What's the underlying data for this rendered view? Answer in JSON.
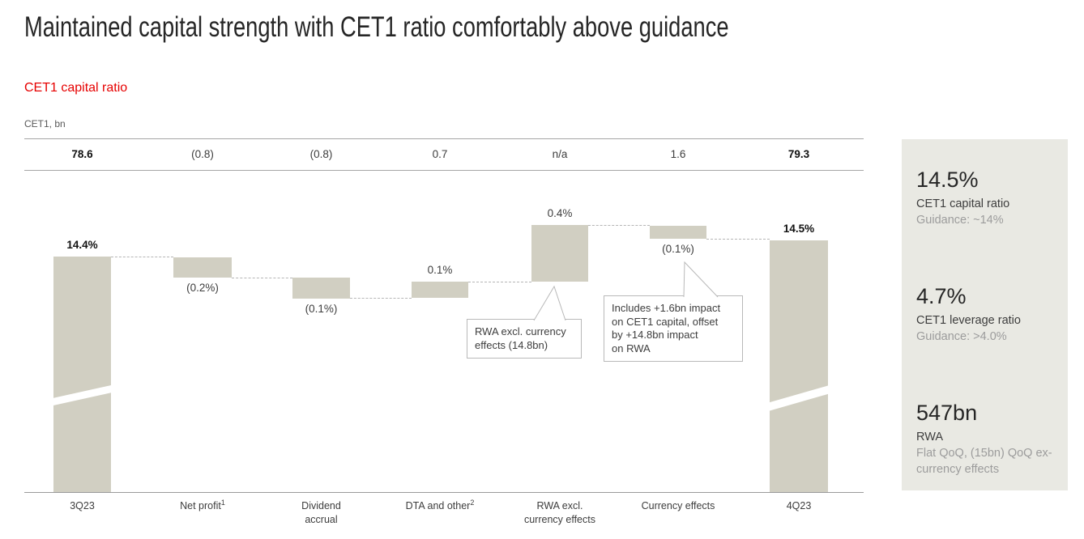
{
  "header": {
    "title": "Maintained capital strength with CET1 ratio comfortably above guidance",
    "subtitle": "CET1 capital ratio"
  },
  "colors": {
    "accent_red": "#e60000",
    "bar_fill": "#d1cfc2",
    "sidebar_bg": "#e9e9e3"
  },
  "chart_data": {
    "type": "bar",
    "subtype": "waterfall",
    "title": "CET1 capital ratio",
    "unit_label": "CET1, bn",
    "grid": false,
    "legend": null,
    "bn_values": [
      78.6,
      -0.8,
      -0.8,
      0.7,
      null,
      1.6,
      79.3
    ],
    "ratio_pct_values": [
      14.4,
      -0.2,
      -0.1,
      0.1,
      0.4,
      -0.1,
      14.5
    ],
    "axis_break_columns": [
      "3Q23",
      "4Q23"
    ],
    "columns": [
      {
        "category_line1": "3Q23",
        "sup": "",
        "category_line2": "",
        "bn": "78.6",
        "ratio": "14.4%",
        "bold": true,
        "label_position": "above",
        "axis_break": true
      },
      {
        "category_line1": "Net profit",
        "sup": "1",
        "category_line2": "",
        "bn": "(0.8)",
        "ratio": "(0.2%)",
        "bold": false,
        "label_position": "below",
        "axis_break": false
      },
      {
        "category_line1": "Dividend",
        "sup": "",
        "category_line2": "accrual",
        "bn": "(0.8)",
        "ratio": "(0.1%)",
        "bold": false,
        "label_position": "below",
        "axis_break": false
      },
      {
        "category_line1": "DTA and other",
        "sup": "2",
        "category_line2": "",
        "bn": "0.7",
        "ratio": "0.1%",
        "bold": false,
        "label_position": "above",
        "axis_break": false
      },
      {
        "category_line1": "RWA excl.",
        "sup": "",
        "category_line2": "currency effects",
        "bn": "n/a",
        "ratio": "0.4%",
        "bold": false,
        "label_position": "above",
        "axis_break": false
      },
      {
        "category_line1": "Currency effects",
        "sup": "",
        "category_line2": "",
        "bn": "1.6",
        "ratio": "(0.1%)",
        "bold": false,
        "label_position": "below",
        "axis_break": false
      },
      {
        "category_line1": "4Q23",
        "sup": "",
        "category_line2": "",
        "bn": "79.3",
        "ratio": "14.5%",
        "bold": true,
        "label_position": "above",
        "axis_break": true
      }
    ]
  },
  "callouts": [
    {
      "lines": [
        "RWA excl. currency",
        "effects (14.8bn)"
      ]
    },
    {
      "lines": [
        "Includes +1.6bn impact",
        "on CET1 capital, offset",
        "by +14.8bn impact",
        "on RWA"
      ]
    }
  ],
  "sidebar": {
    "blocks": [
      {
        "value": "14.5%",
        "label": "CET1 capital ratio",
        "sub": "Guidance: ~14%"
      },
      {
        "value": "4.7%",
        "label": "CET1 leverage ratio",
        "sub": "Guidance: >4.0%"
      },
      {
        "value": "547bn",
        "label": "RWA",
        "sub": "Flat QoQ, (15bn) QoQ ex-currency effects"
      }
    ]
  }
}
